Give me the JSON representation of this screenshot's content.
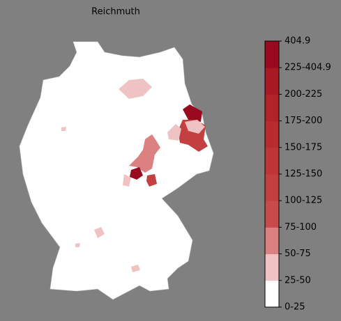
{
  "title": "Reichmuth",
  "colorbar": {
    "labels": [
      "0-25",
      "25-50",
      "50-75",
      "75-100",
      "100-125",
      "125-150",
      "150-175",
      "175-200",
      "200-225",
      "225-404.9",
      "404.9"
    ],
    "colors": [
      "#ffffff",
      "#efc3c3",
      "#db8181",
      "#c94a4a",
      "#c43f3f",
      "#bf3536",
      "#b82c30",
      "#b02429",
      "#a71a24",
      "#9a0a1e"
    ]
  }
}
